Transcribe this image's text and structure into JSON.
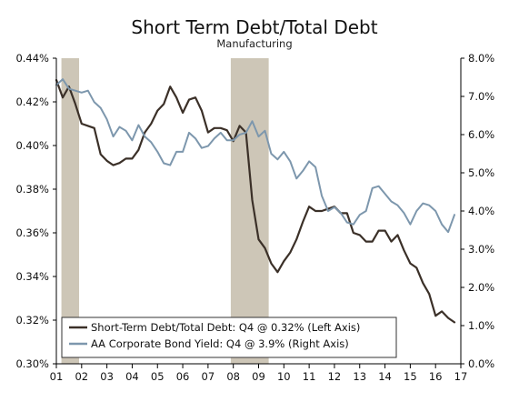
{
  "chart_data": {
    "type": "line",
    "title": "Short Term Debt/Total Debt",
    "subtitle": "Manufacturing",
    "colors": {
      "recession": "#cdc6b7",
      "series_debt": "#3b3028",
      "series_yield": "#7d97ad",
      "axis": "#000000"
    },
    "x_range": [
      2001.0,
      2017.0
    ],
    "x_ticks": [
      {
        "value": 2001.0,
        "label": "01"
      },
      {
        "value": 2002.0,
        "label": "02"
      },
      {
        "value": 2003.0,
        "label": "03"
      },
      {
        "value": 2004.0,
        "label": "04"
      },
      {
        "value": 2005.0,
        "label": "05"
      },
      {
        "value": 2006.0,
        "label": "06"
      },
      {
        "value": 2007.0,
        "label": "07"
      },
      {
        "value": 2008.0,
        "label": "08"
      },
      {
        "value": 2009.0,
        "label": "09"
      },
      {
        "value": 2010.0,
        "label": "10"
      },
      {
        "value": 2011.0,
        "label": "11"
      },
      {
        "value": 2012.0,
        "label": "12"
      },
      {
        "value": 2013.0,
        "label": "13"
      },
      {
        "value": 2014.0,
        "label": "14"
      },
      {
        "value": 2015.0,
        "label": "15"
      },
      {
        "value": 2016.0,
        "label": "16"
      },
      {
        "value": 2017.0,
        "label": "17"
      }
    ],
    "y_left": {
      "ylim": [
        0.3,
        0.44
      ],
      "ticks": [
        {
          "value": 0.3,
          "label": "0.30%"
        },
        {
          "value": 0.32,
          "label": "0.32%"
        },
        {
          "value": 0.34,
          "label": "0.34%"
        },
        {
          "value": 0.36,
          "label": "0.36%"
        },
        {
          "value": 0.38,
          "label": "0.38%"
        },
        {
          "value": 0.4,
          "label": "0.40%"
        },
        {
          "value": 0.42,
          "label": "0.42%"
        },
        {
          "value": 0.44,
          "label": "0.44%"
        }
      ]
    },
    "y_right": {
      "ylim": [
        0.0,
        8.0
      ],
      "ticks": [
        {
          "value": 0.0,
          "label": "0.0%"
        },
        {
          "value": 1.0,
          "label": "1.0%"
        },
        {
          "value": 2.0,
          "label": "2.0%"
        },
        {
          "value": 3.0,
          "label": "3.0%"
        },
        {
          "value": 4.0,
          "label": "4.0%"
        },
        {
          "value": 5.0,
          "label": "5.0%"
        },
        {
          "value": 6.0,
          "label": "6.0%"
        },
        {
          "value": 7.0,
          "label": "7.0%"
        },
        {
          "value": 8.0,
          "label": "8.0%"
        }
      ]
    },
    "recessions": [
      {
        "start": 2001.2,
        "end": 2001.9
      },
      {
        "start": 2007.9,
        "end": 2009.4
      }
    ],
    "legend_position": "bottom-left",
    "series": [
      {
        "name": "Short-Term Debt/Total Debt: Q4 @ 0.32% (Left Axis)",
        "axis": "left",
        "color": "#3b3028",
        "x": [
          2001.0,
          2001.25,
          2001.5,
          2001.75,
          2002.0,
          2002.25,
          2002.5,
          2002.75,
          2003.0,
          2003.25,
          2003.5,
          2003.75,
          2004.0,
          2004.25,
          2004.5,
          2004.75,
          2005.0,
          2005.25,
          2005.5,
          2005.75,
          2006.0,
          2006.25,
          2006.5,
          2006.75,
          2007.0,
          2007.25,
          2007.5,
          2007.75,
          2008.0,
          2008.25,
          2008.5,
          2008.75,
          2009.0,
          2009.25,
          2009.5,
          2009.75,
          2010.0,
          2010.25,
          2010.5,
          2010.75,
          2011.0,
          2011.25,
          2011.5,
          2011.75,
          2012.0,
          2012.25,
          2012.5,
          2012.75,
          2013.0,
          2013.25,
          2013.5,
          2013.75,
          2014.0,
          2014.25,
          2014.5,
          2014.75,
          2015.0,
          2015.25,
          2015.5,
          2015.75,
          2016.0,
          2016.25,
          2016.5,
          2016.75
        ],
        "values": [
          0.43,
          0.422,
          0.427,
          0.419,
          0.41,
          0.409,
          0.408,
          0.396,
          0.393,
          0.391,
          0.392,
          0.394,
          0.394,
          0.398,
          0.406,
          0.41,
          0.416,
          0.419,
          0.427,
          0.422,
          0.415,
          0.421,
          0.422,
          0.416,
          0.406,
          0.408,
          0.408,
          0.407,
          0.402,
          0.409,
          0.406,
          0.375,
          0.357,
          0.353,
          0.346,
          0.342,
          0.347,
          0.351,
          0.357,
          0.365,
          0.372,
          0.37,
          0.37,
          0.371,
          0.372,
          0.369,
          0.369,
          0.36,
          0.359,
          0.356,
          0.356,
          0.361,
          0.361,
          0.356,
          0.359,
          0.352,
          0.346,
          0.344,
          0.337,
          0.332,
          0.322,
          0.324,
          0.321,
          0.319
        ]
      },
      {
        "name": "AA Corporate Bond Yield: Q4 @ 3.9% (Right Axis)",
        "axis": "right",
        "color": "#7d97ad",
        "x": [
          2001.0,
          2001.25,
          2001.5,
          2001.75,
          2002.0,
          2002.25,
          2002.5,
          2002.75,
          2003.0,
          2003.25,
          2003.5,
          2003.75,
          2004.0,
          2004.25,
          2004.5,
          2004.75,
          2005.0,
          2005.25,
          2005.5,
          2005.75,
          2006.0,
          2006.25,
          2006.5,
          2006.75,
          2007.0,
          2007.25,
          2007.5,
          2007.75,
          2008.0,
          2008.25,
          2008.5,
          2008.75,
          2009.0,
          2009.25,
          2009.5,
          2009.75,
          2010.0,
          2010.25,
          2010.5,
          2010.75,
          2011.0,
          2011.25,
          2011.5,
          2011.75,
          2012.0,
          2012.25,
          2012.5,
          2012.75,
          2013.0,
          2013.25,
          2013.5,
          2013.75,
          2014.0,
          2014.25,
          2014.5,
          2014.75,
          2015.0,
          2015.25,
          2015.5,
          2015.75,
          2016.0,
          2016.25,
          2016.5,
          2016.75
        ],
        "values": [
          7.3,
          7.45,
          7.2,
          7.15,
          7.1,
          7.15,
          6.85,
          6.7,
          6.4,
          5.95,
          6.2,
          6.1,
          5.85,
          6.25,
          5.95,
          5.8,
          5.55,
          5.25,
          5.2,
          5.55,
          5.55,
          6.05,
          5.9,
          5.65,
          5.7,
          5.9,
          6.05,
          5.85,
          5.85,
          6.0,
          6.05,
          6.35,
          5.95,
          6.1,
          5.5,
          5.35,
          5.55,
          5.3,
          4.85,
          5.05,
          5.3,
          5.15,
          4.4,
          4.0,
          4.1,
          3.95,
          3.7,
          3.65,
          3.9,
          4.0,
          4.6,
          4.65,
          4.45,
          4.25,
          4.15,
          3.95,
          3.65,
          4.0,
          4.2,
          4.15,
          4.0,
          3.65,
          3.45,
          3.9
        ]
      }
    ]
  }
}
